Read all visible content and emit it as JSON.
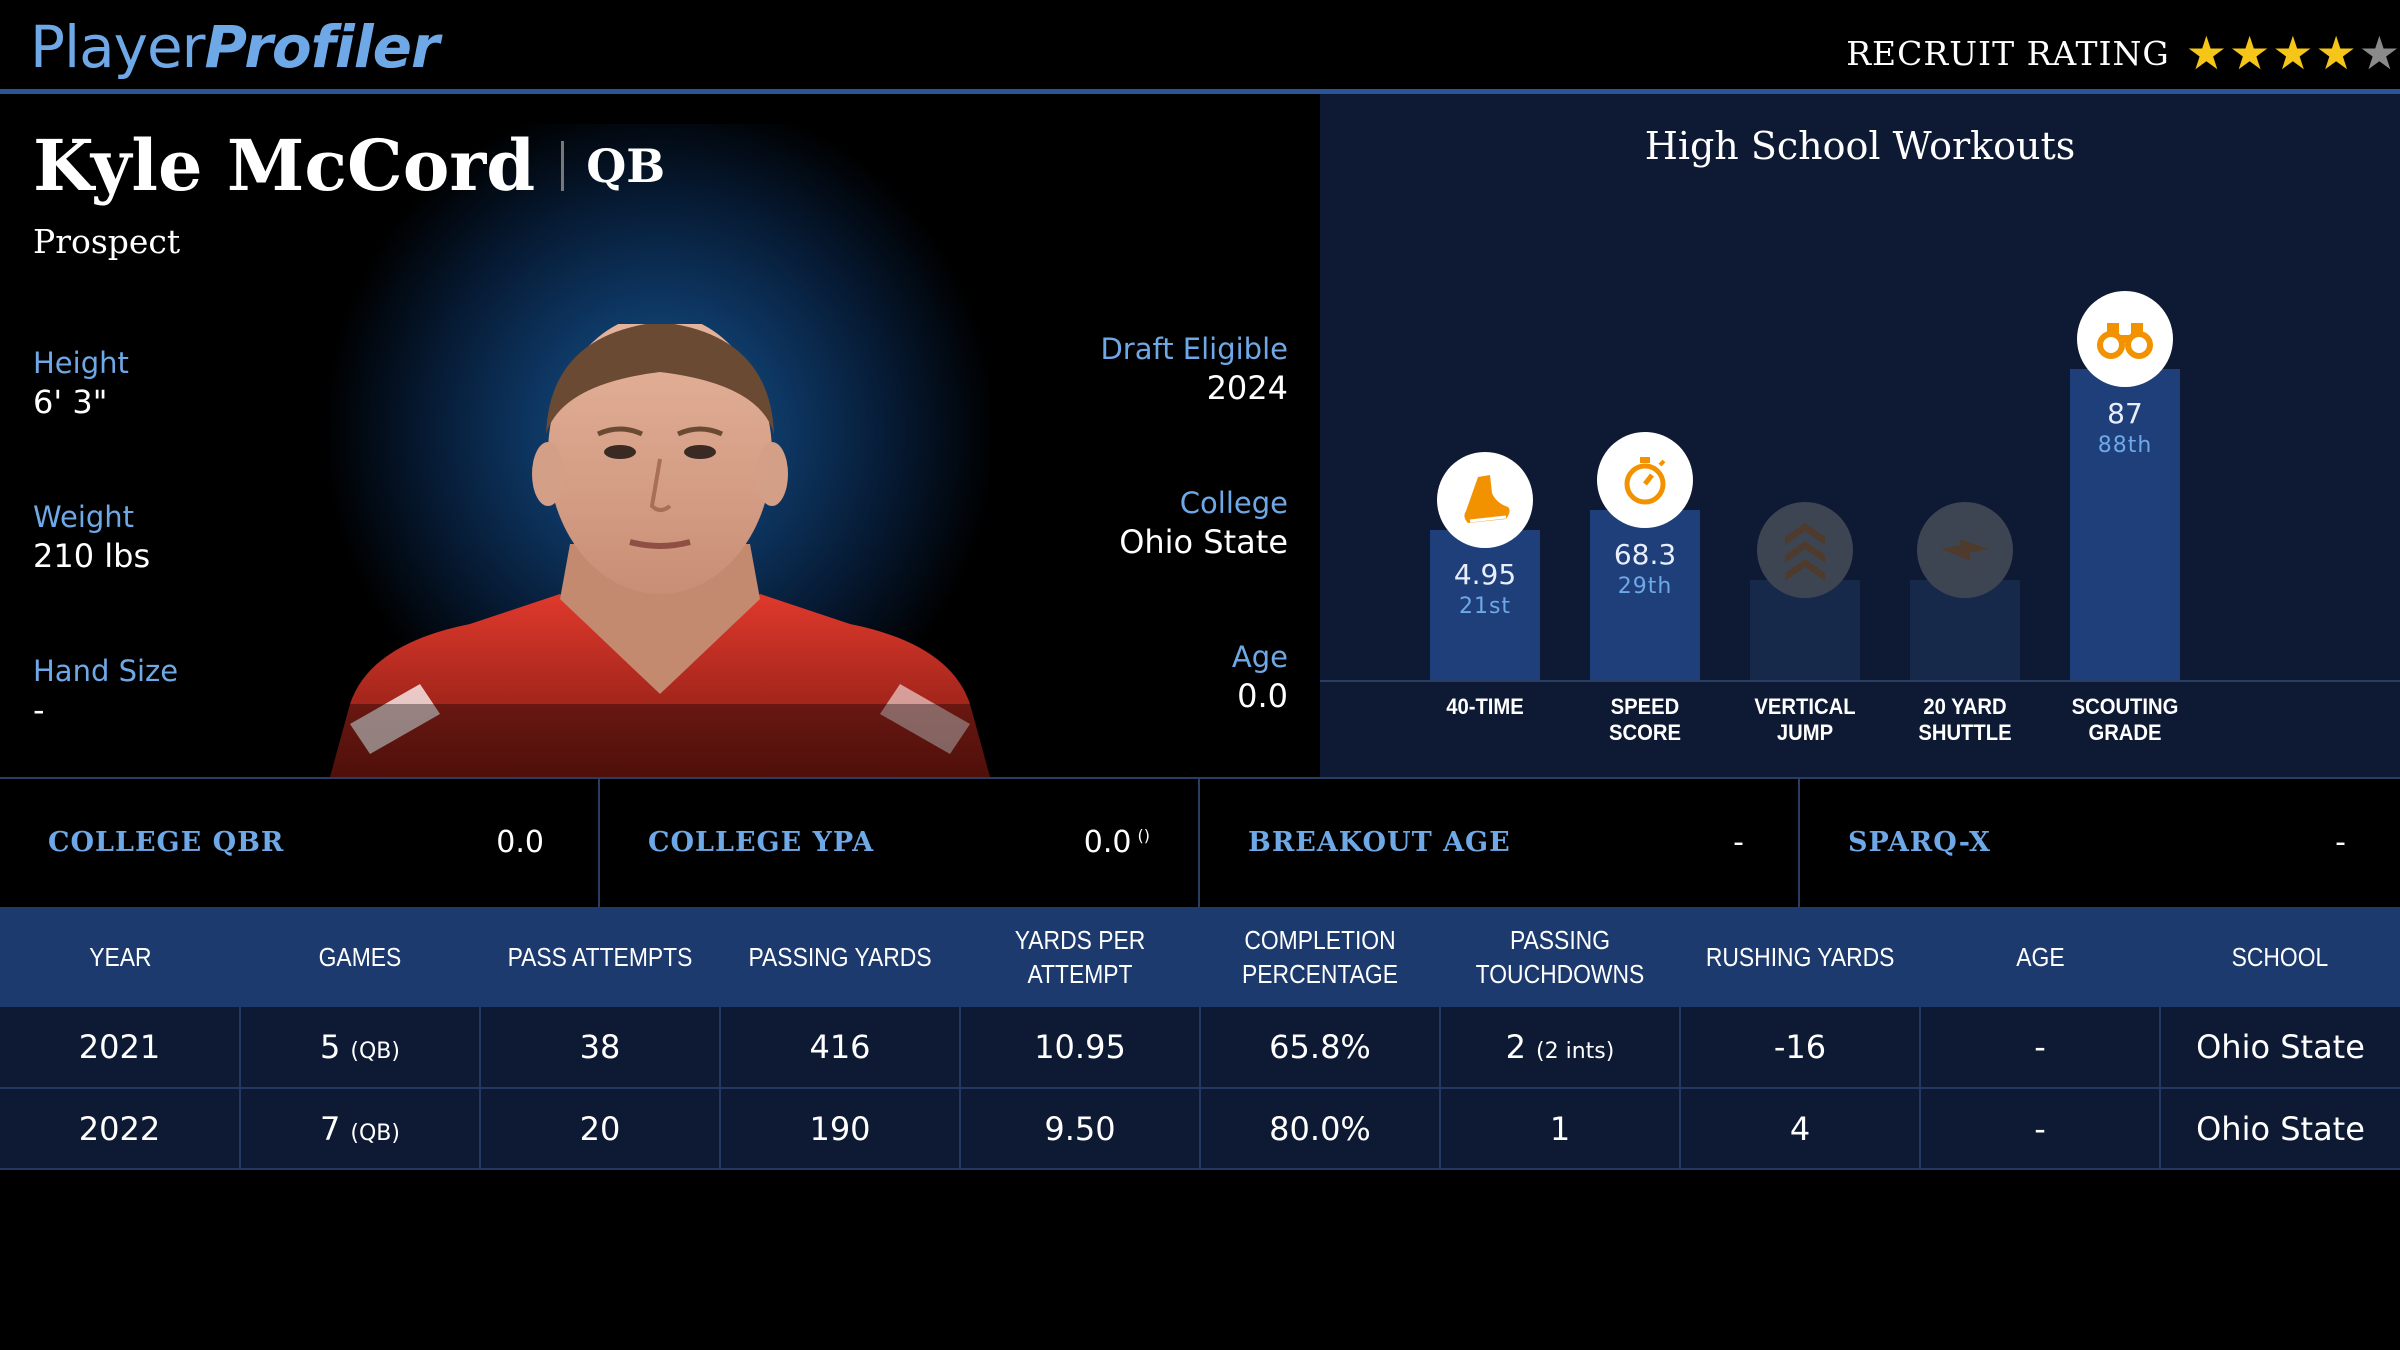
{
  "brand": {
    "part1": "Player",
    "part2": "Profiler"
  },
  "recruit": {
    "label": "RECRUIT RATING",
    "stars_filled": 4,
    "stars_total": 5
  },
  "player": {
    "name": "Kyle McCord",
    "position": "QB",
    "status": "Prospect",
    "height_label": "Height",
    "height": "6' 3\"",
    "weight_label": "Weight",
    "weight": "210 lbs",
    "hand_label": "Hand Size",
    "hand": "-",
    "draft_label": "Draft Eligible",
    "draft": "2024",
    "college_label": "College",
    "college": "Ohio State",
    "age_label": "Age",
    "age": "0.0"
  },
  "workouts": {
    "title": "High School Workouts",
    "items": [
      {
        "label1": "40-TIME",
        "label2": "",
        "value": "4.95",
        "pct": "21st",
        "percentile": 21,
        "icon": "running-shoe-icon",
        "active": true
      },
      {
        "label1": "SPEED",
        "label2": "SCORE",
        "value": "68.3",
        "pct": "29th",
        "percentile": 29,
        "icon": "stopwatch-icon",
        "active": true
      },
      {
        "label1": "VERTICAL",
        "label2": "JUMP",
        "value": "",
        "pct": "",
        "percentile": 0,
        "icon": "chevrons-up-icon",
        "active": false
      },
      {
        "label1": "20 YARD",
        "label2": "SHUTTLE",
        "value": "",
        "pct": "",
        "percentile": 0,
        "icon": "lightning-icon",
        "active": false
      },
      {
        "label1": "SCOUTING",
        "label2": "GRADE",
        "value": "87",
        "pct": "88th",
        "percentile": 88,
        "icon": "binoculars-icon",
        "active": true
      }
    ],
    "accent": "#f39200"
  },
  "metrics": [
    {
      "label": "COLLEGE QBR",
      "value": "0.0",
      "sub": ""
    },
    {
      "label": "COLLEGE YPA",
      "value": "0.0",
      "sub": "()"
    },
    {
      "label": "BREAKOUT AGE",
      "value": "-",
      "sub": ""
    },
    {
      "label": "SPARQ-X",
      "value": "-",
      "sub": ""
    }
  ],
  "table": {
    "headers": [
      "YEAR",
      "GAMES",
      "PASS ATTEMPTS",
      "PASSING YARDS",
      "YARDS PER ATTEMPT",
      "COMPLETION PERCENTAGE",
      "PASSING TOUCHDOWNS",
      "RUSHING YARDS",
      "AGE",
      "SCHOOL"
    ],
    "rows": [
      {
        "year": "2021",
        "games": "5",
        "games_sub": "(QB)",
        "att": "38",
        "yds": "416",
        "ypa": "10.95",
        "cmp": "65.8%",
        "td": "2",
        "td_sub": "(2 ints)",
        "rush": "-16",
        "age": "-",
        "school": "Ohio State"
      },
      {
        "year": "2022",
        "games": "7",
        "games_sub": "(QB)",
        "att": "20",
        "yds": "190",
        "ypa": "9.50",
        "cmp": "80.0%",
        "td": "1",
        "td_sub": "",
        "rush": "4",
        "age": "-",
        "school": "Ohio State"
      }
    ]
  }
}
